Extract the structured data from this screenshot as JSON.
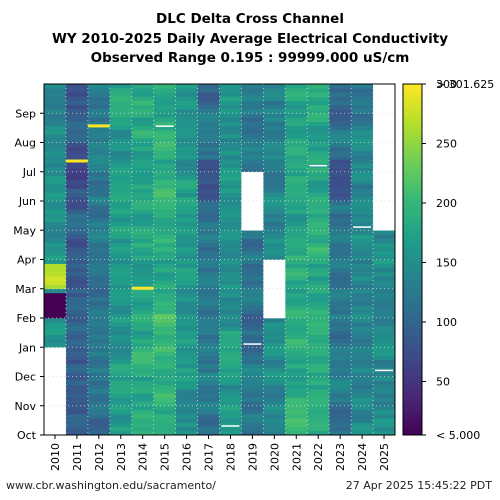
{
  "chart_data": {
    "type": "heatmap",
    "title_lines": [
      "DLC Delta Cross Channel",
      "WY 2010-2025 Daily Average Electrical Conductivity",
      "Observed Range 0.195 : 99999.000 uS/cm"
    ],
    "x_categories": [
      "2010",
      "2011",
      "2012",
      "2013",
      "2014",
      "2015",
      "2016",
      "2017",
      "2018",
      "2019",
      "2020",
      "2021",
      "2022",
      "2023",
      "2024",
      "2025"
    ],
    "y_months": [
      "Oct",
      "Nov",
      "Dec",
      "Jan",
      "Feb",
      "Mar",
      "Apr",
      "May",
      "Jun",
      "Jul",
      "Aug",
      "Sep"
    ],
    "colorbar": {
      "colormap": "viridis",
      "range": [
        5,
        300
      ],
      "ticks": [
        50,
        100,
        150,
        200,
        250,
        300
      ],
      "low_label": "< 5.000",
      "high_label": "> 301.625"
    },
    "grid": "dotted",
    "column_typical_values": {
      "2010": 150,
      "2011": 90,
      "2012": 120,
      "2013": 165,
      "2014": 185,
      "2015": 190,
      "2016": 160,
      "2017": 115,
      "2018": 160,
      "2019": 125,
      "2020": 145,
      "2021": 180,
      "2022": 185,
      "2023": 120,
      "2024": 140,
      "2025": 150
    },
    "missing_data_blocks": [
      {
        "year": "2010",
        "month_span": [
          "Oct",
          "Dec"
        ]
      },
      {
        "year": "2019",
        "month_span": [
          "May",
          "Jun"
        ]
      },
      {
        "year": "2020",
        "month_span": [
          "Feb",
          "Mar"
        ]
      },
      {
        "year": "2025",
        "month_span": [
          "May",
          "Sep"
        ]
      }
    ]
  },
  "footer": {
    "source_url": "www.cbr.washington.edu/sacramento/",
    "timestamp": "27 Apr 2025 15:45:22 PDT"
  }
}
